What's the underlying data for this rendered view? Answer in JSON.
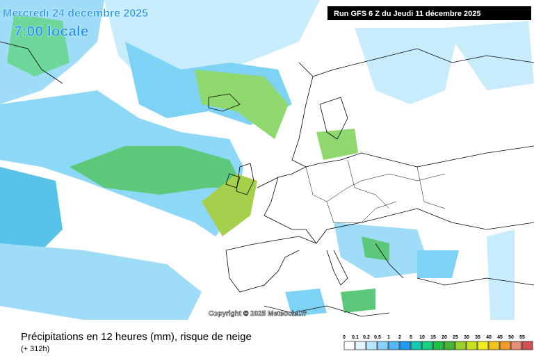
{
  "header": {
    "date": "Mercredi 24 décembre 2025",
    "time": "7:00 locale",
    "run": "Run GFS 6 Z du Jeudi 11 décembre 2025"
  },
  "copyright": "Copyright © 2025 Meteociel.fr",
  "footer": {
    "title": "Précipitations en 12 heures (mm), risque de neige",
    "subtitle": "(+ 312h)"
  },
  "legend": {
    "labels": [
      "0",
      "0.1",
      "0.2",
      "0.5",
      "1",
      "2",
      "5",
      "10",
      "15",
      "20",
      "25",
      "30",
      "35",
      "40",
      "45",
      "50",
      "55"
    ],
    "colors": [
      "#ffffff",
      "#e1f5ff",
      "#b9e6ff",
      "#87d2fa",
      "#50b9f5",
      "#1e9bf0",
      "#14c8b4",
      "#14d282",
      "#1ebe46",
      "#46b432",
      "#9bd228",
      "#c8e11e",
      "#f0eb1e",
      "#f0c31e",
      "#f09b28",
      "#e68c78",
      "#d25050"
    ]
  }
}
